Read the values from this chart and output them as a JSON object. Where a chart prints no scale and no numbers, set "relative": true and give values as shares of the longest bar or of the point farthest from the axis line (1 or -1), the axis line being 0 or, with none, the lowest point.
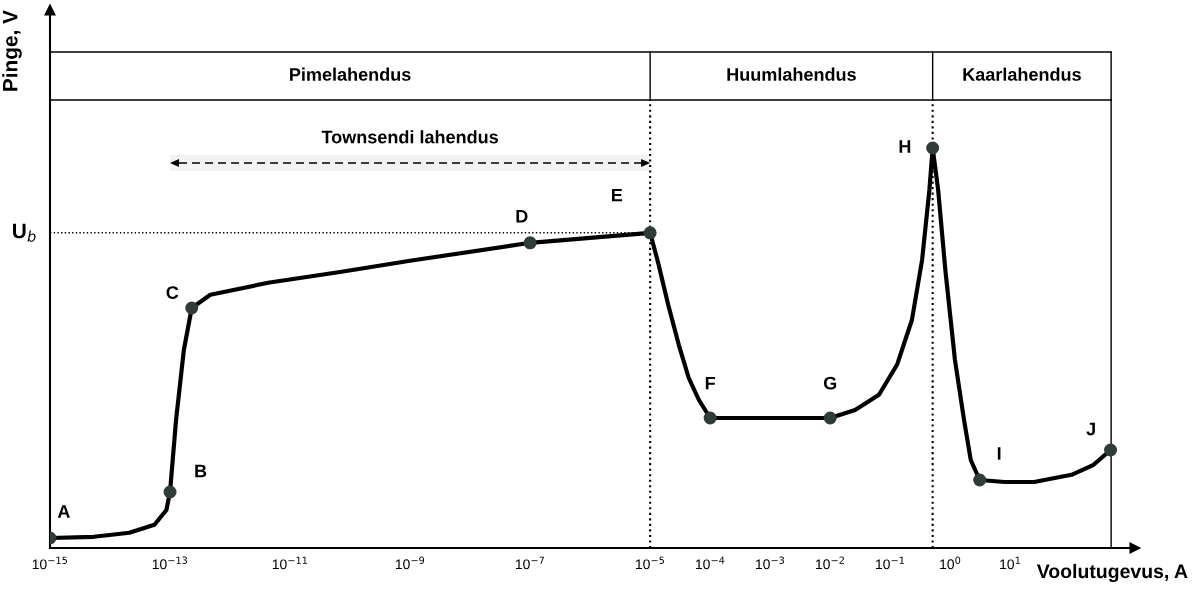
{
  "chart_data": {
    "type": "line",
    "relative": true,
    "log": "x",
    "xlabel": "Voolutugevus, A",
    "ylabel": "Pinge, V",
    "xlim": [
      1e-15,
      1200
    ],
    "xticks": [
      {
        "value": 1e-15,
        "label": "10$^{−15}$"
      },
      {
        "value": 1e-13,
        "label": "10$^{−13}$"
      },
      {
        "value": 1e-11,
        "label": "10$^{−11}$"
      },
      {
        "value": 1e-09,
        "label": "10$^{−9}$"
      },
      {
        "value": 1e-07,
        "label": "10$^{−7}$"
      },
      {
        "value": 1e-05,
        "label": "10$^{−5}$"
      },
      {
        "value": 0.0001,
        "label": "10$^{−4}$"
      },
      {
        "value": 0.001,
        "label": "10$^{−3}$"
      },
      {
        "value": 0.01,
        "label": "10$^{−2}$"
      },
      {
        "value": 0.1,
        "label": "10$^{−1}$"
      },
      {
        "value": 1,
        "label": "10$^{0}$"
      },
      {
        "value": 10,
        "label": "10$^{1}$"
      }
    ],
    "tick_labels": "x",
    "grid": false,
    "series": [
      {
        "color": "#000000",
        "line_style": "solid",
        "marker": "none",
        "x": [
          1e-15,
          5.4e-15,
          2.1e-14,
          5.5e-14,
          8.7e-14,
          1e-13,
          1.26e-13,
          1.7e-13,
          2.3e-13,
          4.7e-13,
          4.3e-12,
          6.8e-11,
          1e-09,
          1e-07,
          1e-05,
          1.35e-05,
          2e-05,
          3e-05,
          4.4e-05,
          6.5e-05,
          0.0001,
          0.01,
          0.026,
          0.065,
          0.13,
          0.23,
          0.34,
          0.45,
          0.51,
          0.63,
          0.83,
          1.2,
          1.7,
          2.2,
          3.1,
          8.1,
          25,
          105,
          245,
          470
        ],
        "values": [
          0.025,
          0.028,
          0.038,
          0.058,
          0.095,
          0.14,
          0.32,
          0.495,
          0.6,
          0.633,
          0.663,
          0.69,
          0.718,
          0.763,
          0.788,
          0.715,
          0.608,
          0.508,
          0.425,
          0.37,
          0.325,
          0.325,
          0.345,
          0.383,
          0.458,
          0.57,
          0.72,
          0.895,
          1.0,
          0.895,
          0.695,
          0.47,
          0.32,
          0.22,
          0.17,
          0.165,
          0.165,
          0.183,
          0.208,
          0.245
        ]
      },
      {
        "type": "scatter",
        "color": "#2f3d38",
        "marker": "circle",
        "x": [
          1e-15,
          1e-13,
          2.3e-13,
          1e-07,
          1e-05,
          0.0001,
          0.01,
          0.51,
          3.1,
          470
        ],
        "values": [
          0.025,
          0.14,
          0.6,
          0.763,
          0.788,
          0.325,
          0.325,
          1.0,
          0.17,
          0.245
        ]
      }
    ],
    "annotations": [
      {
        "text": "A",
        "x": 1e-15,
        "y": 0.025
      },
      {
        "text": "B",
        "x": 1e-13,
        "y": 0.14
      },
      {
        "text": "C",
        "x": 2.3e-13,
        "y": 0.6
      },
      {
        "text": "D",
        "x": 1e-07,
        "y": 0.763
      },
      {
        "text": "E",
        "x": 1e-05,
        "y": 0.788
      },
      {
        "text": "F",
        "x": 0.0001,
        "y": 0.325
      },
      {
        "text": "G",
        "x": 0.01,
        "y": 0.325
      },
      {
        "text": "H",
        "x": 0.51,
        "y": 1.0
      },
      {
        "text": "I",
        "x": 3.1,
        "y": 0.17
      },
      {
        "text": "J",
        "x": 470,
        "y": 0.245
      },
      "Pimelahendus",
      "Huumlahendus",
      "Kaarlahendus"
    ],
    "ref_lines": [
      {
        "axis": "y",
        "value": 0.788,
        "label": "U$_{b}$",
        "line_style": "dotted"
      },
      {
        "axis": "x",
        "value": 1e-05,
        "label": null,
        "line_style": "dotted"
      },
      {
        "axis": "x",
        "value": 0.51,
        "label": null,
        "line_style": "dotted"
      },
      {
        "axis": "x",
        "value": 480,
        "label": null,
        "line_style": "solid"
      }
    ],
    "bands": [
      {
        "axis": "x",
        "from": 1e-13,
        "to": 1e-05,
        "label": "Townsendi lahendus",
        "color": "#f3f3f3"
      }
    ]
  }
}
